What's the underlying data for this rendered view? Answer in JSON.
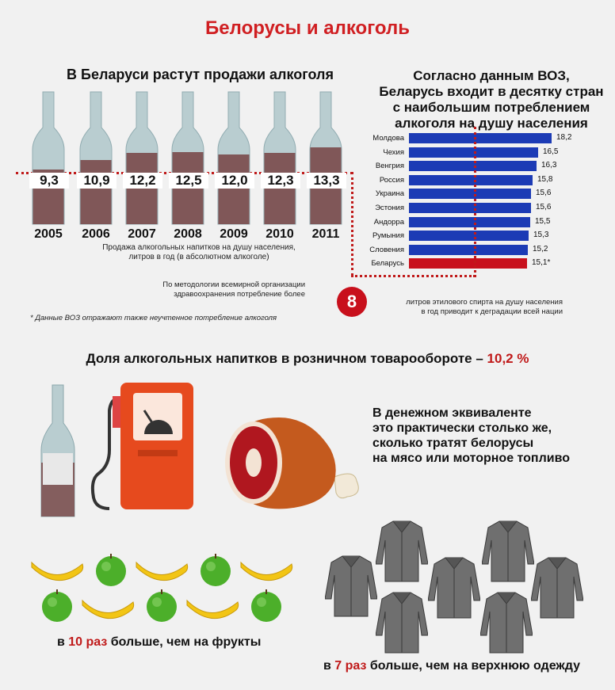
{
  "title": "Белорусы и алкоголь",
  "sales": {
    "heading": "В Беларуси растут продажи алкоголя",
    "caption": "Продажа алкогольных напитков на душу населения, литров в год (в абсолютном алкоголе)",
    "bottles": [
      {
        "year": "2005",
        "value": "9,3"
      },
      {
        "year": "2006",
        "value": "10,9"
      },
      {
        "year": "2007",
        "value": "12,2"
      },
      {
        "year": "2008",
        "value": "12,5"
      },
      {
        "year": "2009",
        "value": "12,0"
      },
      {
        "year": "2010",
        "value": "12,3"
      },
      {
        "year": "2011",
        "value": "13,3"
      }
    ],
    "fill_fraction": [
      0.48,
      0.56,
      0.62,
      0.63,
      0.61,
      0.62,
      0.67
    ]
  },
  "who": {
    "heading": "Согласно данным ВОЗ, Беларусь входит в десятку стран с наибольшим потреблением алкоголя на душу населения",
    "heading_lines": [
      "Согласно данным ВОЗ,",
      "Беларусь входит в десятку стран",
      "с наибольшим потреблением",
      "алкоголя на душу населения"
    ],
    "colors": {
      "bar": "#1c3bb5",
      "highlight": "#c8101c"
    }
  },
  "chart_data": {
    "type": "bar",
    "orientation": "horizontal",
    "categories": [
      "Молдова",
      "Чехия",
      "Венгрия",
      "Россия",
      "Украина",
      "Эстония",
      "Андорра",
      "Румыния",
      "Словения",
      "Беларусь"
    ],
    "values": [
      18.2,
      16.5,
      16.3,
      15.8,
      15.6,
      15.6,
      15.5,
      15.3,
      15.2,
      15.1
    ],
    "value_labels": [
      "18,2",
      "16,5",
      "16,3",
      "15,8",
      "15,6",
      "15,6",
      "15,5",
      "15,3",
      "15,2",
      "15,1*"
    ],
    "highlight": "Беларусь"
  },
  "threshold": {
    "badge": "8",
    "left_note": "По методологии всемирной организации здравоохранения потребление более",
    "left_lines": [
      "По методологии всемирной организации",
      "здравоохранения потребление более"
    ],
    "right_lines": [
      "литров этилового спирта на душу населения",
      "в год приводит к деградации всей нации"
    ]
  },
  "footnote": "* Данные ВОЗ отражают также неучтенное потребление алкоголя",
  "retail": {
    "heading_prefix": "Доля алкогольных напитков в розничном товарообороте – ",
    "heading_value": "10,2 %",
    "comparison_lines": [
      "В денежном эквиваленте",
      "это практически столько же,",
      "сколько тратят белорусы",
      "на мясо или моторное топливо"
    ]
  },
  "fruits": {
    "prefix": "в ",
    "highlight": "10 раз",
    "suffix": " больше, чем на фрукты"
  },
  "clothes": {
    "prefix": "в ",
    "highlight": "7 раз",
    "suffix": " больше, чем на верхнюю одежду"
  }
}
